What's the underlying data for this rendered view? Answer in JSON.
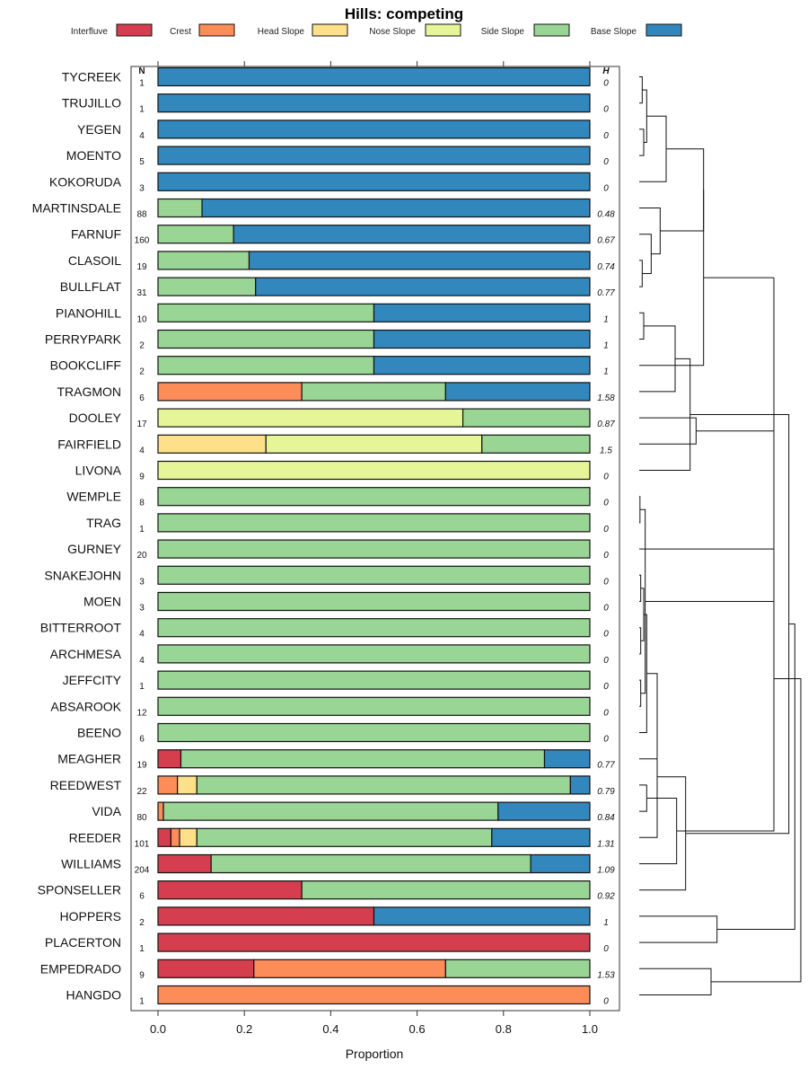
{
  "chart_data": {
    "type": "bar",
    "orientation": "horizontal",
    "stacked": true,
    "title": "Hills: competing",
    "xlabel": "Proportion",
    "ylabel": "",
    "xlim": [
      0,
      1
    ],
    "xticks": [
      0.0,
      0.2,
      0.4,
      0.6,
      0.8,
      1.0
    ],
    "xtick_labels": [
      "0.0",
      "0.2",
      "0.4",
      "0.6",
      "0.8",
      "1.0"
    ],
    "n_header": "N",
    "h_header": "H",
    "legend_position": "top",
    "series": [
      {
        "name": "Interfluve",
        "color": "#d53e4f"
      },
      {
        "name": "Crest",
        "color": "#fc8d59"
      },
      {
        "name": "Head Slope",
        "color": "#fee08b"
      },
      {
        "name": "Nose Slope",
        "color": "#e6f598"
      },
      {
        "name": "Side Slope",
        "color": "#99d594"
      },
      {
        "name": "Base Slope",
        "color": "#3288bd"
      }
    ],
    "rows": [
      {
        "name": "TYCREEK",
        "n": "1",
        "h": "0",
        "values": [
          0,
          0,
          0,
          0,
          0,
          1
        ]
      },
      {
        "name": "TRUJILLO",
        "n": "1",
        "h": "0",
        "values": [
          0,
          0,
          0,
          0,
          0,
          1
        ]
      },
      {
        "name": "YEGEN",
        "n": "4",
        "h": "0",
        "values": [
          0,
          0,
          0,
          0,
          0,
          1
        ]
      },
      {
        "name": "MOENTO",
        "n": "5",
        "h": "0",
        "values": [
          0,
          0,
          0,
          0,
          0,
          1
        ]
      },
      {
        "name": "KOKORUDA",
        "n": "3",
        "h": "0",
        "values": [
          0,
          0,
          0,
          0,
          0,
          1
        ]
      },
      {
        "name": "MARTINSDALE",
        "n": "88",
        "h": "0.48",
        "values": [
          0,
          0,
          0,
          0,
          0.102,
          0.898
        ]
      },
      {
        "name": "FARNUF",
        "n": "160",
        "h": "0.67",
        "values": [
          0,
          0,
          0,
          0,
          0.175,
          0.825
        ]
      },
      {
        "name": "CLASOIL",
        "n": "19",
        "h": "0.74",
        "values": [
          0,
          0,
          0,
          0,
          0.211,
          0.789
        ]
      },
      {
        "name": "BULLFLAT",
        "n": "31",
        "h": "0.77",
        "values": [
          0,
          0,
          0,
          0,
          0.226,
          0.774
        ]
      },
      {
        "name": "PIANOHILL",
        "n": "10",
        "h": "1",
        "values": [
          0,
          0,
          0,
          0,
          0.5,
          0.5
        ]
      },
      {
        "name": "PERRYPARK",
        "n": "2",
        "h": "1",
        "values": [
          0,
          0,
          0,
          0,
          0.5,
          0.5
        ]
      },
      {
        "name": "BOOKCLIFF",
        "n": "2",
        "h": "1",
        "values": [
          0,
          0,
          0,
          0,
          0.5,
          0.5
        ]
      },
      {
        "name": "TRAGMON",
        "n": "6",
        "h": "1.58",
        "values": [
          0,
          0.333,
          0,
          0,
          0.333,
          0.334
        ]
      },
      {
        "name": "DOOLEY",
        "n": "17",
        "h": "0.87",
        "values": [
          0,
          0,
          0,
          0.706,
          0.294,
          0
        ]
      },
      {
        "name": "FAIRFIELD",
        "n": "4",
        "h": "1.5",
        "values": [
          0,
          0,
          0.25,
          0.5,
          0.25,
          0
        ]
      },
      {
        "name": "LIVONA",
        "n": "9",
        "h": "0",
        "values": [
          0,
          0,
          0,
          1,
          0,
          0
        ]
      },
      {
        "name": "WEMPLE",
        "n": "8",
        "h": "0",
        "values": [
          0,
          0,
          0,
          0,
          1,
          0
        ]
      },
      {
        "name": "TRAG",
        "n": "1",
        "h": "0",
        "values": [
          0,
          0,
          0,
          0,
          1,
          0
        ]
      },
      {
        "name": "GURNEY",
        "n": "20",
        "h": "0",
        "values": [
          0,
          0,
          0,
          0,
          1,
          0
        ]
      },
      {
        "name": "SNAKEJOHN",
        "n": "3",
        "h": "0",
        "values": [
          0,
          0,
          0,
          0,
          1,
          0
        ]
      },
      {
        "name": "MOEN",
        "n": "3",
        "h": "0",
        "values": [
          0,
          0,
          0,
          0,
          1,
          0
        ]
      },
      {
        "name": "BITTERROOT",
        "n": "4",
        "h": "0",
        "values": [
          0,
          0,
          0,
          0,
          1,
          0
        ]
      },
      {
        "name": "ARCHMESA",
        "n": "4",
        "h": "0",
        "values": [
          0,
          0,
          0,
          0,
          1,
          0
        ]
      },
      {
        "name": "JEFFCITY",
        "n": "1",
        "h": "0",
        "values": [
          0,
          0,
          0,
          0,
          1,
          0
        ]
      },
      {
        "name": "ABSAROOK",
        "n": "12",
        "h": "0",
        "values": [
          0,
          0,
          0,
          0,
          1,
          0
        ]
      },
      {
        "name": "BEENO",
        "n": "6",
        "h": "0",
        "values": [
          0,
          0,
          0,
          0,
          1,
          0
        ]
      },
      {
        "name": "MEAGHER",
        "n": "19",
        "h": "0.77",
        "values": [
          0.053,
          0,
          0,
          0,
          0.842,
          0.105
        ]
      },
      {
        "name": "REEDWEST",
        "n": "22",
        "h": "0.79",
        "values": [
          0,
          0.045,
          0.045,
          0,
          0.865,
          0.045
        ]
      },
      {
        "name": "VIDA",
        "n": "80",
        "h": "0.84",
        "values": [
          0,
          0.0125,
          0,
          0,
          0.775,
          0.2125
        ]
      },
      {
        "name": "REEDER",
        "n": "101",
        "h": "1.31",
        "values": [
          0.03,
          0.02,
          0.04,
          0,
          0.683,
          0.227
        ]
      },
      {
        "name": "WILLIAMS",
        "n": "204",
        "h": "1.09",
        "values": [
          0.123,
          0,
          0,
          0,
          0.74,
          0.137
        ]
      },
      {
        "name": "SPONSELLER",
        "n": "6",
        "h": "0.92",
        "values": [
          0.333,
          0,
          0,
          0,
          0.667,
          0
        ]
      },
      {
        "name": "HOPPERS",
        "n": "2",
        "h": "1",
        "values": [
          0.5,
          0,
          0,
          0,
          0,
          0.5
        ]
      },
      {
        "name": "PLACERTON",
        "n": "1",
        "h": "0",
        "values": [
          1,
          0,
          0,
          0,
          0,
          0
        ]
      },
      {
        "name": "EMPEDRADO",
        "n": "9",
        "h": "1.53",
        "values": [
          0.222,
          0.444,
          0,
          0,
          0.334,
          0
        ]
      },
      {
        "name": "HANGDO",
        "n": "1",
        "h": "0",
        "values": [
          0,
          1,
          0,
          0,
          0,
          0
        ]
      }
    ],
    "dendrogram": {
      "position": "right",
      "leaf_order": [
        "TYCREEK",
        "TRUJILLO",
        "YEGEN",
        "MOENTO",
        "KOKORUDA",
        "MARTINSDALE",
        "FARNUF",
        "CLASOIL",
        "BULLFLAT",
        "PIANOHILL",
        "PERRYPARK",
        "BOOKCLIFF",
        "TRAGMON",
        "DOOLEY",
        "FAIRFIELD",
        "LIVONA",
        "WEMPLE",
        "TRAG",
        "GURNEY",
        "SNAKEJOHN",
        "MOEN",
        "BITTERROOT",
        "ARCHMESA",
        "JEFFCITY",
        "ABSAROOK",
        "BEENO",
        "MEAGHER",
        "REEDWEST",
        "VIDA",
        "REEDER",
        "WILLIAMS",
        "SPONSELLER",
        "HOPPERS",
        "PLACERTON",
        "EMPEDRADO",
        "HANGDO"
      ],
      "merges": [
        [
          0,
          1,
          0.02
        ],
        [
          2,
          3,
          0.03
        ],
        [
          36,
          37,
          0.05
        ],
        [
          38,
          4,
          0.18
        ],
        [
          7,
          8,
          0.02
        ],
        [
          6,
          40,
          0.08
        ],
        [
          5,
          41,
          0.14
        ],
        [
          39,
          42,
          0.43
        ],
        [
          9,
          10,
          0.03
        ],
        [
          43,
          11,
          0.05
        ],
        [
          44,
          12,
          0.24
        ],
        [
          13,
          14,
          0.38
        ],
        [
          46,
          15,
          0.34
        ],
        [
          45,
          47,
          0.9
        ],
        [
          16,
          17,
          0.005
        ],
        [
          19,
          20,
          0.01
        ],
        [
          21,
          22,
          0.01
        ],
        [
          23,
          24,
          0.01
        ],
        [
          49,
          18,
          0.02
        ],
        [
          51,
          52,
          0.03
        ],
        [
          50,
          53,
          0.04
        ],
        [
          25,
          55,
          0.05
        ],
        [
          54,
          56,
          0.06
        ],
        [
          57,
          26,
          0.12
        ],
        [
          27,
          28,
          0.05
        ],
        [
          59,
          29,
          0.08
        ],
        [
          60,
          30,
          0.25
        ],
        [
          61,
          31,
          0.31
        ],
        [
          58,
          62,
          0.62
        ],
        [
          48,
          63,
          1.0
        ],
        [
          32,
          33,
          0.52
        ],
        [
          34,
          35,
          0.48
        ],
        [
          65,
          66,
          1.04
        ],
        [
          64,
          67,
          1.08
        ]
      ]
    }
  }
}
